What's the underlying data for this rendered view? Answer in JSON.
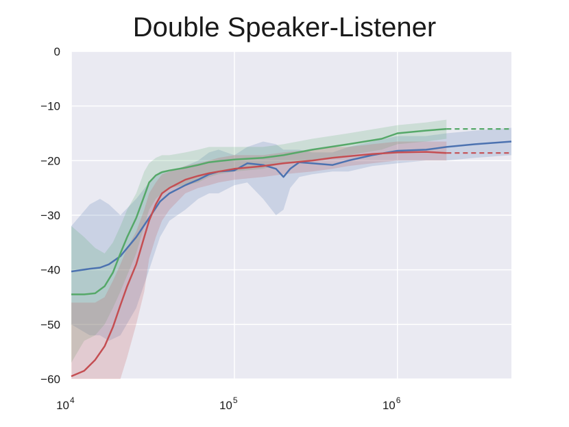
{
  "chart_data": {
    "type": "line",
    "title": "Double Speaker-Listener",
    "xlabel": "",
    "ylabel": "",
    "x_scale": "log",
    "xlim": [
      10000,
      5000000
    ],
    "ylim": [
      -60,
      0
    ],
    "grid": true,
    "legend": "none",
    "background": "#eaeaf2",
    "y_ticks": [
      {
        "value": 0,
        "label": "0"
      },
      {
        "value": -10,
        "label": "−10"
      },
      {
        "value": -20,
        "label": "−20"
      },
      {
        "value": -30,
        "label": "−30"
      },
      {
        "value": -40,
        "label": "−40"
      },
      {
        "value": -50,
        "label": "−50"
      },
      {
        "value": -60,
        "label": "−60"
      }
    ],
    "x_ticks": [
      {
        "value": 10000,
        "base": "10",
        "exp": "4"
      },
      {
        "value": 100000,
        "base": "10",
        "exp": "5"
      },
      {
        "value": 1000000,
        "base": "10",
        "exp": "6"
      }
    ],
    "series": [
      {
        "color": "#4c72b0",
        "x": [
          10000,
          13000,
          15000,
          17000,
          20000,
          25000,
          30000,
          35000,
          40000,
          50000,
          60000,
          70000,
          80000,
          100000,
          120000,
          150000,
          180000,
          200000,
          220000,
          250000,
          300000,
          400000,
          500000,
          700000,
          1000000,
          1500000,
          2000000,
          3000000,
          5000000
        ],
        "y": [
          -40.3,
          -39.8,
          -39.6,
          -39.0,
          -37.5,
          -34.0,
          -30.5,
          -27.5,
          -26.0,
          -24.5,
          -23.5,
          -22.5,
          -22.0,
          -21.8,
          -20.5,
          -20.8,
          -21.5,
          -23.0,
          -21.5,
          -20.3,
          -20.5,
          -20.8,
          -20.0,
          -19.0,
          -18.2,
          -18.0,
          -17.5,
          -17.0,
          -16.5
        ],
        "band_lower": [
          -50,
          -52,
          -52,
          -53,
          -52,
          -47,
          -40,
          -34,
          -31,
          -29,
          -27,
          -26,
          -26,
          -24.5,
          -24,
          -27,
          -30,
          -29,
          -25,
          -23,
          -22.5,
          -22,
          -22,
          -21,
          -20.5,
          -20,
          -20,
          -19.5,
          -19
        ],
        "band_upper": [
          -32,
          -28,
          -27,
          -28,
          -30,
          -27,
          -24,
          -22,
          -22,
          -21,
          -20,
          -18.5,
          -18,
          -19,
          -17.5,
          -16.5,
          -17,
          -18,
          -18,
          -18,
          -18.5,
          -18.5,
          -17.5,
          -16.5,
          -15.5,
          -15.5,
          -15,
          -14.5,
          -14
        ]
      },
      {
        "color": "#55a868",
        "x": [
          10000,
          12000,
          14000,
          16000,
          18000,
          20000,
          22000,
          25000,
          28000,
          30000,
          33000,
          36000,
          40000,
          50000,
          60000,
          70000,
          80000,
          100000,
          150000,
          200000,
          300000,
          500000,
          800000,
          1000000,
          1500000,
          2000000
        ],
        "y": [
          -44.5,
          -44.5,
          -44.3,
          -43.0,
          -40.5,
          -37.0,
          -34.0,
          -30.5,
          -26.5,
          -24.0,
          -22.7,
          -22.1,
          -21.8,
          -21.3,
          -20.8,
          -20.3,
          -20.1,
          -19.8,
          -19.5,
          -19.0,
          -18.0,
          -17.0,
          -16.0,
          -15.0,
          -14.5,
          -14.2
        ],
        "band_lower": [
          -57,
          -53,
          -52,
          -50,
          -47,
          -44,
          -41,
          -37,
          -32,
          -29,
          -27,
          -26,
          -25,
          -24.5,
          -24,
          -23,
          -22.5,
          -22,
          -21.5,
          -20.5,
          -20,
          -19,
          -18,
          -17,
          -16.5,
          -16
        ],
        "band_upper": [
          -32,
          -34,
          -36,
          -37,
          -35,
          -32,
          -29,
          -26,
          -22,
          -20.5,
          -19.5,
          -19,
          -19,
          -18.5,
          -18,
          -17.5,
          -17.5,
          -17.5,
          -17.5,
          -17,
          -16,
          -15,
          -14,
          -13.5,
          -13,
          -12.5
        ],
        "extension": {
          "x": [
            2000000,
            5000000
          ],
          "y": [
            -14.2,
            -14.2
          ]
        }
      },
      {
        "color": "#c44e52",
        "x": [
          10000,
          12000,
          14000,
          16000,
          18000,
          20000,
          22000,
          25000,
          28000,
          30000,
          33000,
          36000,
          40000,
          50000,
          60000,
          70000,
          80000,
          100000,
          150000,
          200000,
          300000,
          400000,
          500000,
          700000,
          1000000,
          1500000,
          2000000
        ],
        "y": [
          -59.5,
          -58.5,
          -56.5,
          -54.0,
          -50.5,
          -46.5,
          -43.0,
          -39.0,
          -34.0,
          -31.0,
          -28.0,
          -26.0,
          -25.0,
          -23.5,
          -22.8,
          -22.3,
          -22.0,
          -21.5,
          -21.0,
          -20.5,
          -20.0,
          -19.5,
          -19.2,
          -18.8,
          -18.5,
          -18.4,
          -18.6
        ],
        "band_lower": [
          -60,
          -60,
          -60,
          -60,
          -60,
          -60,
          -56,
          -50,
          -44,
          -38,
          -34,
          -31,
          -29,
          -26,
          -25,
          -24.5,
          -24,
          -23.5,
          -23,
          -22.5,
          -22,
          -21.5,
          -21,
          -20.5,
          -20,
          -20,
          -20
        ],
        "band_upper": [
          -46,
          -46,
          -46,
          -45,
          -42,
          -39,
          -36,
          -33,
          -29,
          -26,
          -24,
          -22.5,
          -22,
          -21,
          -20.5,
          -20,
          -19.5,
          -19,
          -19,
          -18.5,
          -18,
          -17.5,
          -17.5,
          -17,
          -16.5,
          -16.5,
          -16.5
        ],
        "extension": {
          "x": [
            2000000,
            5000000
          ],
          "y": [
            -18.6,
            -18.6
          ]
        }
      }
    ]
  }
}
